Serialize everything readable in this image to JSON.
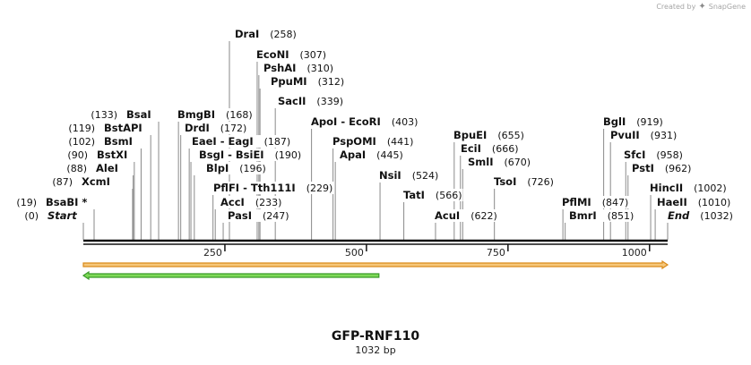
{
  "brand": {
    "created_by": "Created by",
    "product": "SnapGene",
    "logo_icon": "snapgene-logo-icon"
  },
  "sequence": {
    "name": "GFP-RNF110",
    "length_label": "1032 bp",
    "length": 1032
  },
  "axis": {
    "ticks": [
      250,
      500,
      750,
      1000
    ]
  },
  "colors": {
    "backbone": "#111111",
    "feature1_fill": "#f6c77a",
    "feature1_edge": "#d98a1a",
    "feature2_fill": "#7ed957",
    "feature2_edge": "#3a9a2a",
    "lead": "#8a8a8a"
  },
  "features": [
    {
      "start": 0,
      "end": 1032,
      "direction": "forward"
    },
    {
      "start": 0,
      "end": 522,
      "direction": "reverse"
    }
  ],
  "sites": [
    {
      "pos": "(258)",
      "name": "DraI",
      "site": 258
    },
    {
      "pos": "(307)",
      "name": "EcoNI",
      "site": 307
    },
    {
      "pos": "(310)",
      "name": "PshAI",
      "site": 310
    },
    {
      "pos": "(312)",
      "name": "PpuMI",
      "site": 312
    },
    {
      "pos": "(339)",
      "name": "SacII",
      "site": 339
    },
    {
      "pos": "(133)",
      "name": "BsaI",
      "site": 133
    },
    {
      "pos": "(168)",
      "name": "BmgBI",
      "site": 168
    },
    {
      "pos": "(119)",
      "name": "BstAPI",
      "site": 119
    },
    {
      "pos": "(172)",
      "name": "DrdI",
      "site": 172
    },
    {
      "pos": "(102)",
      "name": "BsmI",
      "site": 102
    },
    {
      "pos": "(187)",
      "name": "EaeI - EagI",
      "site": 187
    },
    {
      "pos": "(90)",
      "name": "BstXI",
      "site": 90
    },
    {
      "pos": "(190)",
      "name": "BsgI - BsiEI",
      "site": 190
    },
    {
      "pos": "(88)",
      "name": "AleI",
      "site": 88
    },
    {
      "pos": "(196)",
      "name": "BlpI",
      "site": 196
    },
    {
      "pos": "(87)",
      "name": "XcmI",
      "site": 87
    },
    {
      "pos": "(229)",
      "name": "PflFI - Tth111I",
      "site": 229
    },
    {
      "pos": "(19)",
      "name": "BsaBI *",
      "site": 19
    },
    {
      "pos": "(233)",
      "name": "AccI",
      "site": 233
    },
    {
      "pos": "(0)",
      "name": "Start",
      "site": 0
    },
    {
      "pos": "(247)",
      "name": "PasI",
      "site": 247
    },
    {
      "pos": "(403)",
      "name": "ApoI - EcoRI",
      "site": 403
    },
    {
      "pos": "(441)",
      "name": "PspOMI",
      "site": 441
    },
    {
      "pos": "(445)",
      "name": "ApaI",
      "site": 445
    },
    {
      "pos": "(524)",
      "name": "NsiI",
      "site": 524
    },
    {
      "pos": "(566)",
      "name": "TatI",
      "site": 566
    },
    {
      "pos": "(622)",
      "name": "AcuI",
      "site": 622
    },
    {
      "pos": "(655)",
      "name": "BpuEI",
      "site": 655
    },
    {
      "pos": "(666)",
      "name": "EciI",
      "site": 666
    },
    {
      "pos": "(670)",
      "name": "SmlI",
      "site": 670
    },
    {
      "pos": "(726)",
      "name": "TsoI",
      "site": 726
    },
    {
      "pos": "(847)",
      "name": "PflMI",
      "site": 847
    },
    {
      "pos": "(851)",
      "name": "BmrI",
      "site": 851
    },
    {
      "pos": "(919)",
      "name": "BglI",
      "site": 919
    },
    {
      "pos": "(931)",
      "name": "PvuII",
      "site": 931
    },
    {
      "pos": "(958)",
      "name": "SfcI",
      "site": 958
    },
    {
      "pos": "(962)",
      "name": "PstI",
      "site": 962
    },
    {
      "pos": "(1002)",
      "name": "HincII",
      "site": 1002
    },
    {
      "pos": "(1010)",
      "name": "HaeII",
      "site": 1010
    },
    {
      "pos": "(1032)",
      "name": "End",
      "site": 1032
    }
  ]
}
